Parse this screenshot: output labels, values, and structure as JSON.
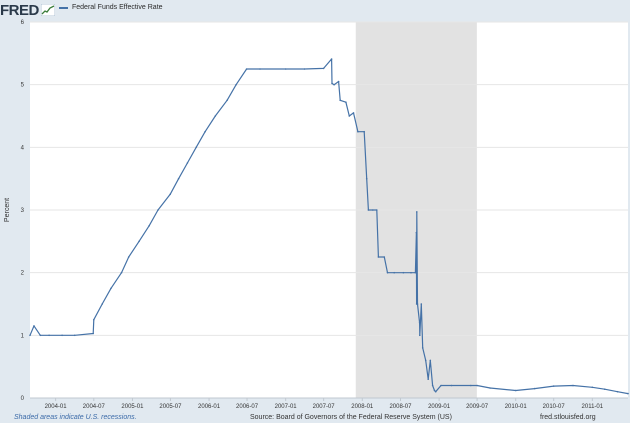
{
  "header": {
    "logo_text": "FRED",
    "legend_label": "Federal Funds Effective Rate"
  },
  "colors": {
    "series": "#4572a7",
    "recession": "#e2e2e2",
    "grid": "#e6e6e6",
    "plot_bg": "#ffffff",
    "frame_bg": "#e1e9f0"
  },
  "footer": {
    "left": "Shaded areas indicate U.S. recessions.",
    "center": "Source: Board of Governors of the Federal Reserve System (US)",
    "right": "fred.stlouisfed.org"
  },
  "chart_data": {
    "type": "line",
    "title": "",
    "xlabel": "",
    "ylabel": "Percent",
    "ylim": [
      0,
      6
    ],
    "yticks": [
      0,
      1,
      2,
      3,
      4,
      5,
      6
    ],
    "xlim": [
      "2003-09-01",
      "2011-06-20"
    ],
    "xticks": [
      "2004-01",
      "2004-07",
      "2005-01",
      "2005-07",
      "2006-01",
      "2006-07",
      "2007-01",
      "2007-07",
      "2008-01",
      "2008-07",
      "2009-01",
      "2009-07",
      "2010-01",
      "2010-07",
      "2011-01"
    ],
    "grid": "horizontal",
    "legend": "top-left",
    "recessions": [
      [
        "2007-12-01",
        "2009-06-30"
      ]
    ],
    "series": [
      {
        "name": "Federal Funds Effective Rate",
        "x": [
          "2003-09-01",
          "2003-09-20",
          "2003-10-20",
          "2003-12-01",
          "2004-02-01",
          "2004-04-01",
          "2004-06-28",
          "2004-07-01",
          "2004-08-10",
          "2004-09-21",
          "2004-11-10",
          "2004-12-14",
          "2005-02-02",
          "2005-03-22",
          "2005-05-03",
          "2005-06-30",
          "2005-08-09",
          "2005-09-20",
          "2005-11-01",
          "2005-12-13",
          "2006-01-31",
          "2006-03-28",
          "2006-05-10",
          "2006-06-29",
          "2006-09-01",
          "2007-01-01",
          "2007-04-01",
          "2007-07-01",
          "2007-08-08",
          "2007-08-10",
          "2007-08-20",
          "2007-09-10",
          "2007-09-18",
          "2007-10-15",
          "2007-10-31",
          "2007-11-20",
          "2007-12-11",
          "2008-01-10",
          "2008-01-22",
          "2008-01-30",
          "2008-02-20",
          "2008-03-10",
          "2008-03-18",
          "2008-04-15",
          "2008-04-30",
          "2008-06-01",
          "2008-07-15",
          "2008-08-20",
          "2008-09-10",
          "2008-09-15",
          "2008-09-16",
          "2008-09-17",
          "2008-09-20",
          "2008-09-30",
          "2008-10-01",
          "2008-10-08",
          "2008-10-15",
          "2008-10-29",
          "2008-11-10",
          "2008-11-20",
          "2008-12-01",
          "2008-12-10",
          "2008-12-16",
          "2009-01-10",
          "2009-03-01",
          "2009-06-01",
          "2009-07-01",
          "2009-09-01",
          "2010-01-01",
          "2010-04-01",
          "2010-07-01",
          "2010-10-01",
          "2011-01-01",
          "2011-03-01",
          "2011-05-01",
          "2011-06-20"
        ],
        "values": [
          1.0,
          1.15,
          1.0,
          1.0,
          1.0,
          1.0,
          1.03,
          1.25,
          1.5,
          1.75,
          2.0,
          2.25,
          2.5,
          2.75,
          3.0,
          3.25,
          3.5,
          3.75,
          4.0,
          4.25,
          4.5,
          4.75,
          5.0,
          5.25,
          5.25,
          5.25,
          5.25,
          5.26,
          5.41,
          5.02,
          5.0,
          5.05,
          4.75,
          4.72,
          4.5,
          4.55,
          4.25,
          4.25,
          3.5,
          3.0,
          3.0,
          3.0,
          2.25,
          2.25,
          2.0,
          2.0,
          2.0,
          2.0,
          2.0,
          2.64,
          1.5,
          2.97,
          1.5,
          1.2,
          1.0,
          1.5,
          0.8,
          0.6,
          0.3,
          0.6,
          0.2,
          0.12,
          0.1,
          0.2,
          0.2,
          0.2,
          0.2,
          0.16,
          0.12,
          0.15,
          0.19,
          0.2,
          0.17,
          0.14,
          0.1,
          0.07
        ]
      }
    ]
  }
}
